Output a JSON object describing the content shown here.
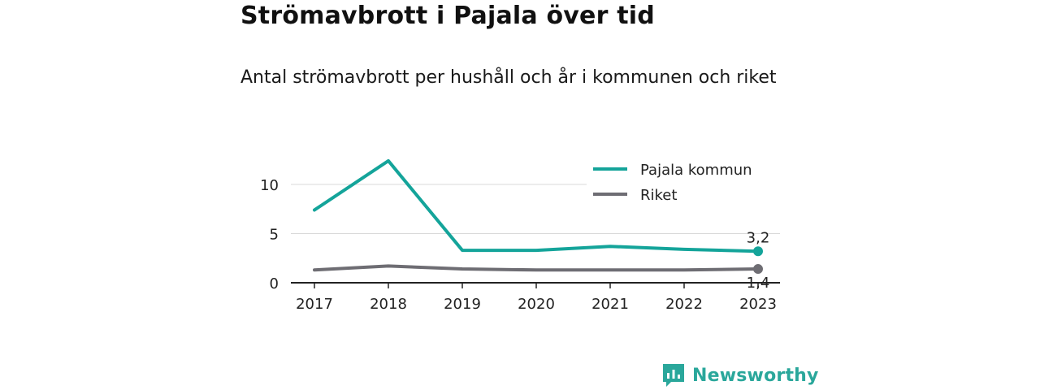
{
  "header": {
    "title": "Strömavbrott i Pajala över tid",
    "subtitle": "Antal strömavbrott per hushåll och år i kommunen och riket"
  },
  "chart_data": {
    "type": "line",
    "x": [
      "2017",
      "2018",
      "2019",
      "2020",
      "2021",
      "2022",
      "2023"
    ],
    "ylim": [
      0,
      12.5
    ],
    "yticks": [
      0,
      5,
      10
    ],
    "grid": true,
    "legend_position": "top-right",
    "series": [
      {
        "name": "Pajala kommun",
        "color": "#14a49a",
        "values": [
          7.4,
          12.4,
          3.3,
          3.3,
          3.7,
          3.4,
          3.2
        ],
        "end_label": "3,2"
      },
      {
        "name": "Riket",
        "color": "#6e6d73",
        "values": [
          1.3,
          1.7,
          1.4,
          1.3,
          1.3,
          1.3,
          1.4
        ],
        "end_label": "1,4"
      }
    ]
  },
  "brand": {
    "name": "Newsworthy",
    "icon": "newsworthy-logo-icon",
    "color": "#2aa79b"
  }
}
